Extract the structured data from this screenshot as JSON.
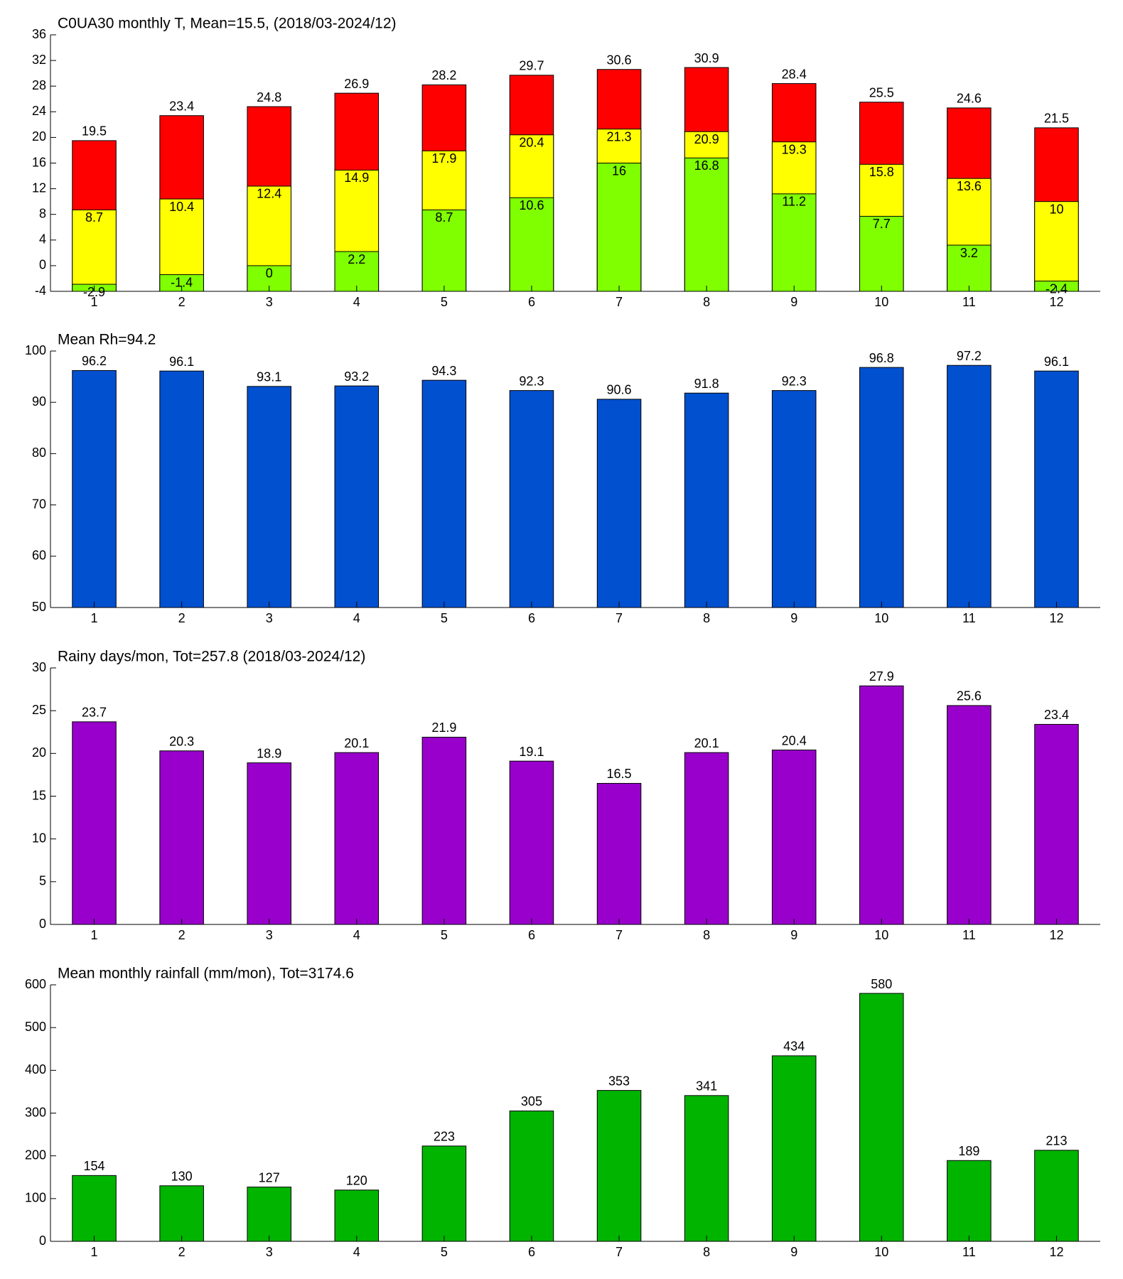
{
  "chart_data": [
    {
      "type": "bar",
      "title": "C0UA30 monthly T, Mean=15.5, (2018/03-2024/12)",
      "categories": [
        "1",
        "2",
        "3",
        "4",
        "5",
        "6",
        "7",
        "8",
        "9",
        "10",
        "11",
        "12"
      ],
      "series": [
        {
          "color": "#ff0000",
          "values": [
            19.5,
            23.4,
            24.8,
            26.9,
            28.2,
            29.7,
            30.6,
            30.9,
            28.4,
            25.5,
            24.6,
            21.5
          ]
        },
        {
          "color": "#ffff00",
          "values": [
            8.7,
            10.4,
            12.4,
            14.9,
            17.9,
            20.4,
            21.3,
            20.9,
            19.3,
            15.8,
            13.6,
            10
          ]
        },
        {
          "color": "#80ff00",
          "values": [
            -2.9,
            -1.4,
            0,
            2.2,
            8.7,
            10.6,
            16,
            16.8,
            11.2,
            7.7,
            3.2,
            -2.4
          ]
        }
      ],
      "ylim": [
        -4,
        36
      ],
      "yticks": [
        -4,
        0,
        4,
        8,
        12,
        16,
        20,
        24,
        28,
        32,
        36
      ]
    },
    {
      "type": "bar",
      "title": "Mean Rh=94.2",
      "categories": [
        "1",
        "2",
        "3",
        "4",
        "5",
        "6",
        "7",
        "8",
        "9",
        "10",
        "11",
        "12"
      ],
      "values": [
        96.2,
        96.1,
        93.1,
        93.2,
        94.3,
        92.3,
        90.6,
        91.8,
        92.3,
        96.8,
        97.2,
        96.1
      ],
      "color": "#0050d0",
      "ylim": [
        50,
        100
      ],
      "yticks": [
        50,
        60,
        70,
        80,
        90,
        100
      ]
    },
    {
      "type": "bar",
      "title": "Rainy days/mon, Tot=257.8 (2018/03-2024/12)",
      "categories": [
        "1",
        "2",
        "3",
        "4",
        "5",
        "6",
        "7",
        "8",
        "9",
        "10",
        "11",
        "12"
      ],
      "values": [
        23.7,
        20.3,
        18.9,
        20.1,
        21.9,
        19.1,
        16.5,
        20.1,
        20.4,
        27.9,
        25.6,
        23.4
      ],
      "color": "#9900cc",
      "ylim": [
        0,
        30
      ],
      "yticks": [
        0,
        5,
        10,
        15,
        20,
        25,
        30
      ]
    },
    {
      "type": "bar",
      "title": "Mean monthly rainfall (mm/mon), Tot=3174.6",
      "categories": [
        "1",
        "2",
        "3",
        "4",
        "5",
        "6",
        "7",
        "8",
        "9",
        "10",
        "11",
        "12"
      ],
      "values": [
        154,
        130,
        127,
        120,
        223,
        305,
        353,
        341,
        434,
        580,
        189,
        213
      ],
      "color": "#00b400",
      "ylim": [
        0,
        600
      ],
      "yticks": [
        0,
        100,
        200,
        300,
        400,
        500,
        600
      ]
    }
  ]
}
